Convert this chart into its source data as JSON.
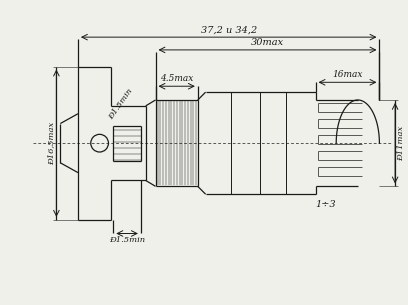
{
  "bg_color": "#f0f0eb",
  "line_color": "#1a1a1a",
  "figsize": [
    4.08,
    3.05
  ],
  "dpi": 100,
  "annotations": {
    "dim1": "37,2 и 34,2",
    "dim2": "30max",
    "dim3": "4.5max",
    "dim4": "16max",
    "dim_left": "Ð16,5max",
    "dim_d45min": "Ð1.5min",
    "dim_right": "Ð11max",
    "dim_thread": "Ð1.5min",
    "dim_step": "1÷3"
  }
}
